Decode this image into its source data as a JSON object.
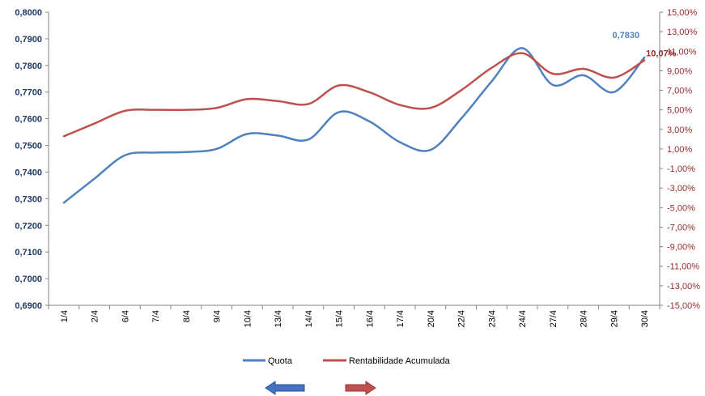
{
  "chart_data": {
    "type": "line",
    "categories": [
      "1/4",
      "2/4",
      "6/4",
      "7/4",
      "8/4",
      "9/4",
      "10/4",
      "13/4",
      "14/4",
      "15/4",
      "16/4",
      "17/4",
      "20/4",
      "22/4",
      "23/4",
      "24/4",
      "27/4",
      "28/4",
      "29/4",
      "30/4"
    ],
    "series": [
      {
        "name": "Quota",
        "axis": "left",
        "color": "#4F81BD",
        "values": [
          0.7285,
          0.7375,
          0.7463,
          0.7473,
          0.7475,
          0.7487,
          0.7543,
          0.7537,
          0.7522,
          0.7625,
          0.759,
          0.7512,
          0.7483,
          0.76,
          0.774,
          0.7865,
          0.7727,
          0.7763,
          0.77,
          0.783
        ]
      },
      {
        "name": "Rentabilidade Acumulada",
        "axis": "right",
        "color": "#C0504D",
        "values": [
          2.3,
          3.6,
          4.9,
          5.0,
          5.0,
          5.2,
          6.1,
          5.9,
          5.6,
          7.5,
          6.8,
          5.5,
          5.2,
          7.0,
          9.3,
          10.8,
          8.7,
          9.2,
          8.3,
          10.07
        ]
      }
    ],
    "y_left": {
      "range": [
        0.69,
        0.8
      ],
      "ticks": [
        "0,8000",
        "0,7900",
        "0,7800",
        "0,7700",
        "0,7600",
        "0,7500",
        "0,7400",
        "0,7300",
        "0,7200",
        "0,7100",
        "0,7000",
        "0,6900"
      ],
      "tick_values": [
        0.8,
        0.79,
        0.78,
        0.77,
        0.76,
        0.75,
        0.74,
        0.73,
        0.72,
        0.71,
        0.7,
        0.69
      ],
      "color": "#1F3864"
    },
    "y_right": {
      "range": [
        -15,
        15
      ],
      "ticks": [
        "15,00%",
        "13,00%",
        "11,00%",
        "9,00%",
        "7,00%",
        "5,00%",
        "3,00%",
        "1,00%",
        "-1,00%",
        "-3,00%",
        "-5,00%",
        "-7,00%",
        "-9,00%",
        "-11,00%",
        "-13,00%",
        "-15,00%"
      ],
      "tick_values": [
        15,
        13,
        11,
        9,
        7,
        5,
        3,
        1,
        -1,
        -3,
        -5,
        -7,
        -9,
        -11,
        -13,
        -15
      ],
      "color": "#9A2A2A"
    },
    "data_labels": [
      {
        "series": "Quota",
        "text": "0,7830",
        "color": "#4F81BD"
      },
      {
        "series": "Rentabilidade Acumulada",
        "text": "10,07%",
        "color": "#9A2A2A"
      }
    ],
    "legend": {
      "placement": "bottom",
      "entries": [
        "Quota",
        "Rentabilidade Acumulada"
      ]
    },
    "arrows": {
      "left_color": "#4472C4",
      "right_color": "#C0504D"
    },
    "grid": false,
    "title": "",
    "xlabel": "",
    "ylabel": ""
  }
}
